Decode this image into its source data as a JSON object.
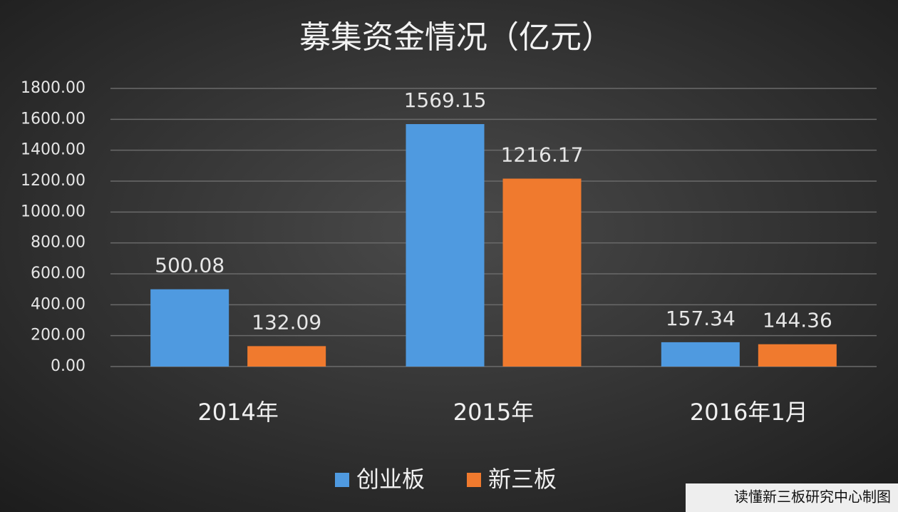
{
  "chart_data": {
    "type": "bar",
    "title": "募集资金情况（亿元）",
    "categories": [
      "2014年",
      "2015年",
      "2016年1月"
    ],
    "series": [
      {
        "name": "创业板",
        "color": "#4f9ae0",
        "values": [
          500.08,
          1569.15,
          157.34
        ]
      },
      {
        "name": "新三板",
        "color": "#f07a2e",
        "values": [
          132.09,
          1216.17,
          144.36
        ]
      }
    ],
    "ylim": [
      0,
      1800
    ],
    "yticks": [
      {
        "value": 0,
        "label": "0.00"
      },
      {
        "value": 200,
        "label": "200.00"
      },
      {
        "value": 400,
        "label": "400.00"
      },
      {
        "value": 600,
        "label": "600.00"
      },
      {
        "value": 800,
        "label": "800.00"
      },
      {
        "value": 1000,
        "label": "1000.00"
      },
      {
        "value": 1200,
        "label": "1200.00"
      },
      {
        "value": 1400,
        "label": "1400.00"
      },
      {
        "value": 1600,
        "label": "1600.00"
      },
      {
        "value": 1800,
        "label": "1800.00"
      }
    ],
    "grid": true,
    "legend": "bottom",
    "source": "读懂新三板研究中心制图"
  }
}
